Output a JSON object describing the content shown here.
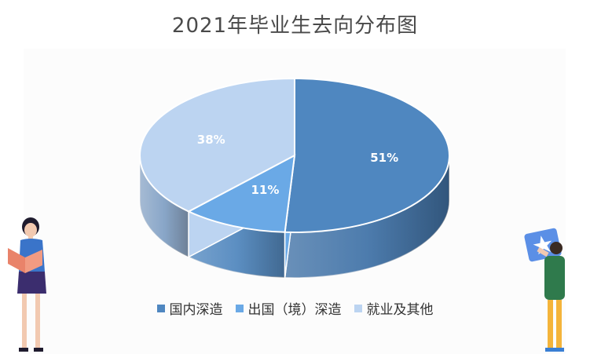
{
  "chart_data": {
    "type": "pie",
    "title": "2021年毕业生去向分布图",
    "categories": [
      "国内深造",
      "出国（境）深造",
      "就业及其他"
    ],
    "values": [
      51,
      11,
      38
    ],
    "labels": [
      "51%",
      "11%",
      "38%"
    ],
    "colors": [
      "#4f87c0",
      "#6aa9e6",
      "#bcd4f1"
    ],
    "legend_position": "bottom",
    "style": "3d"
  },
  "decor": {
    "left_figure_icon": "woman-reading-book-icon",
    "right_figure_icon": "man-holding-star-card-icon"
  }
}
